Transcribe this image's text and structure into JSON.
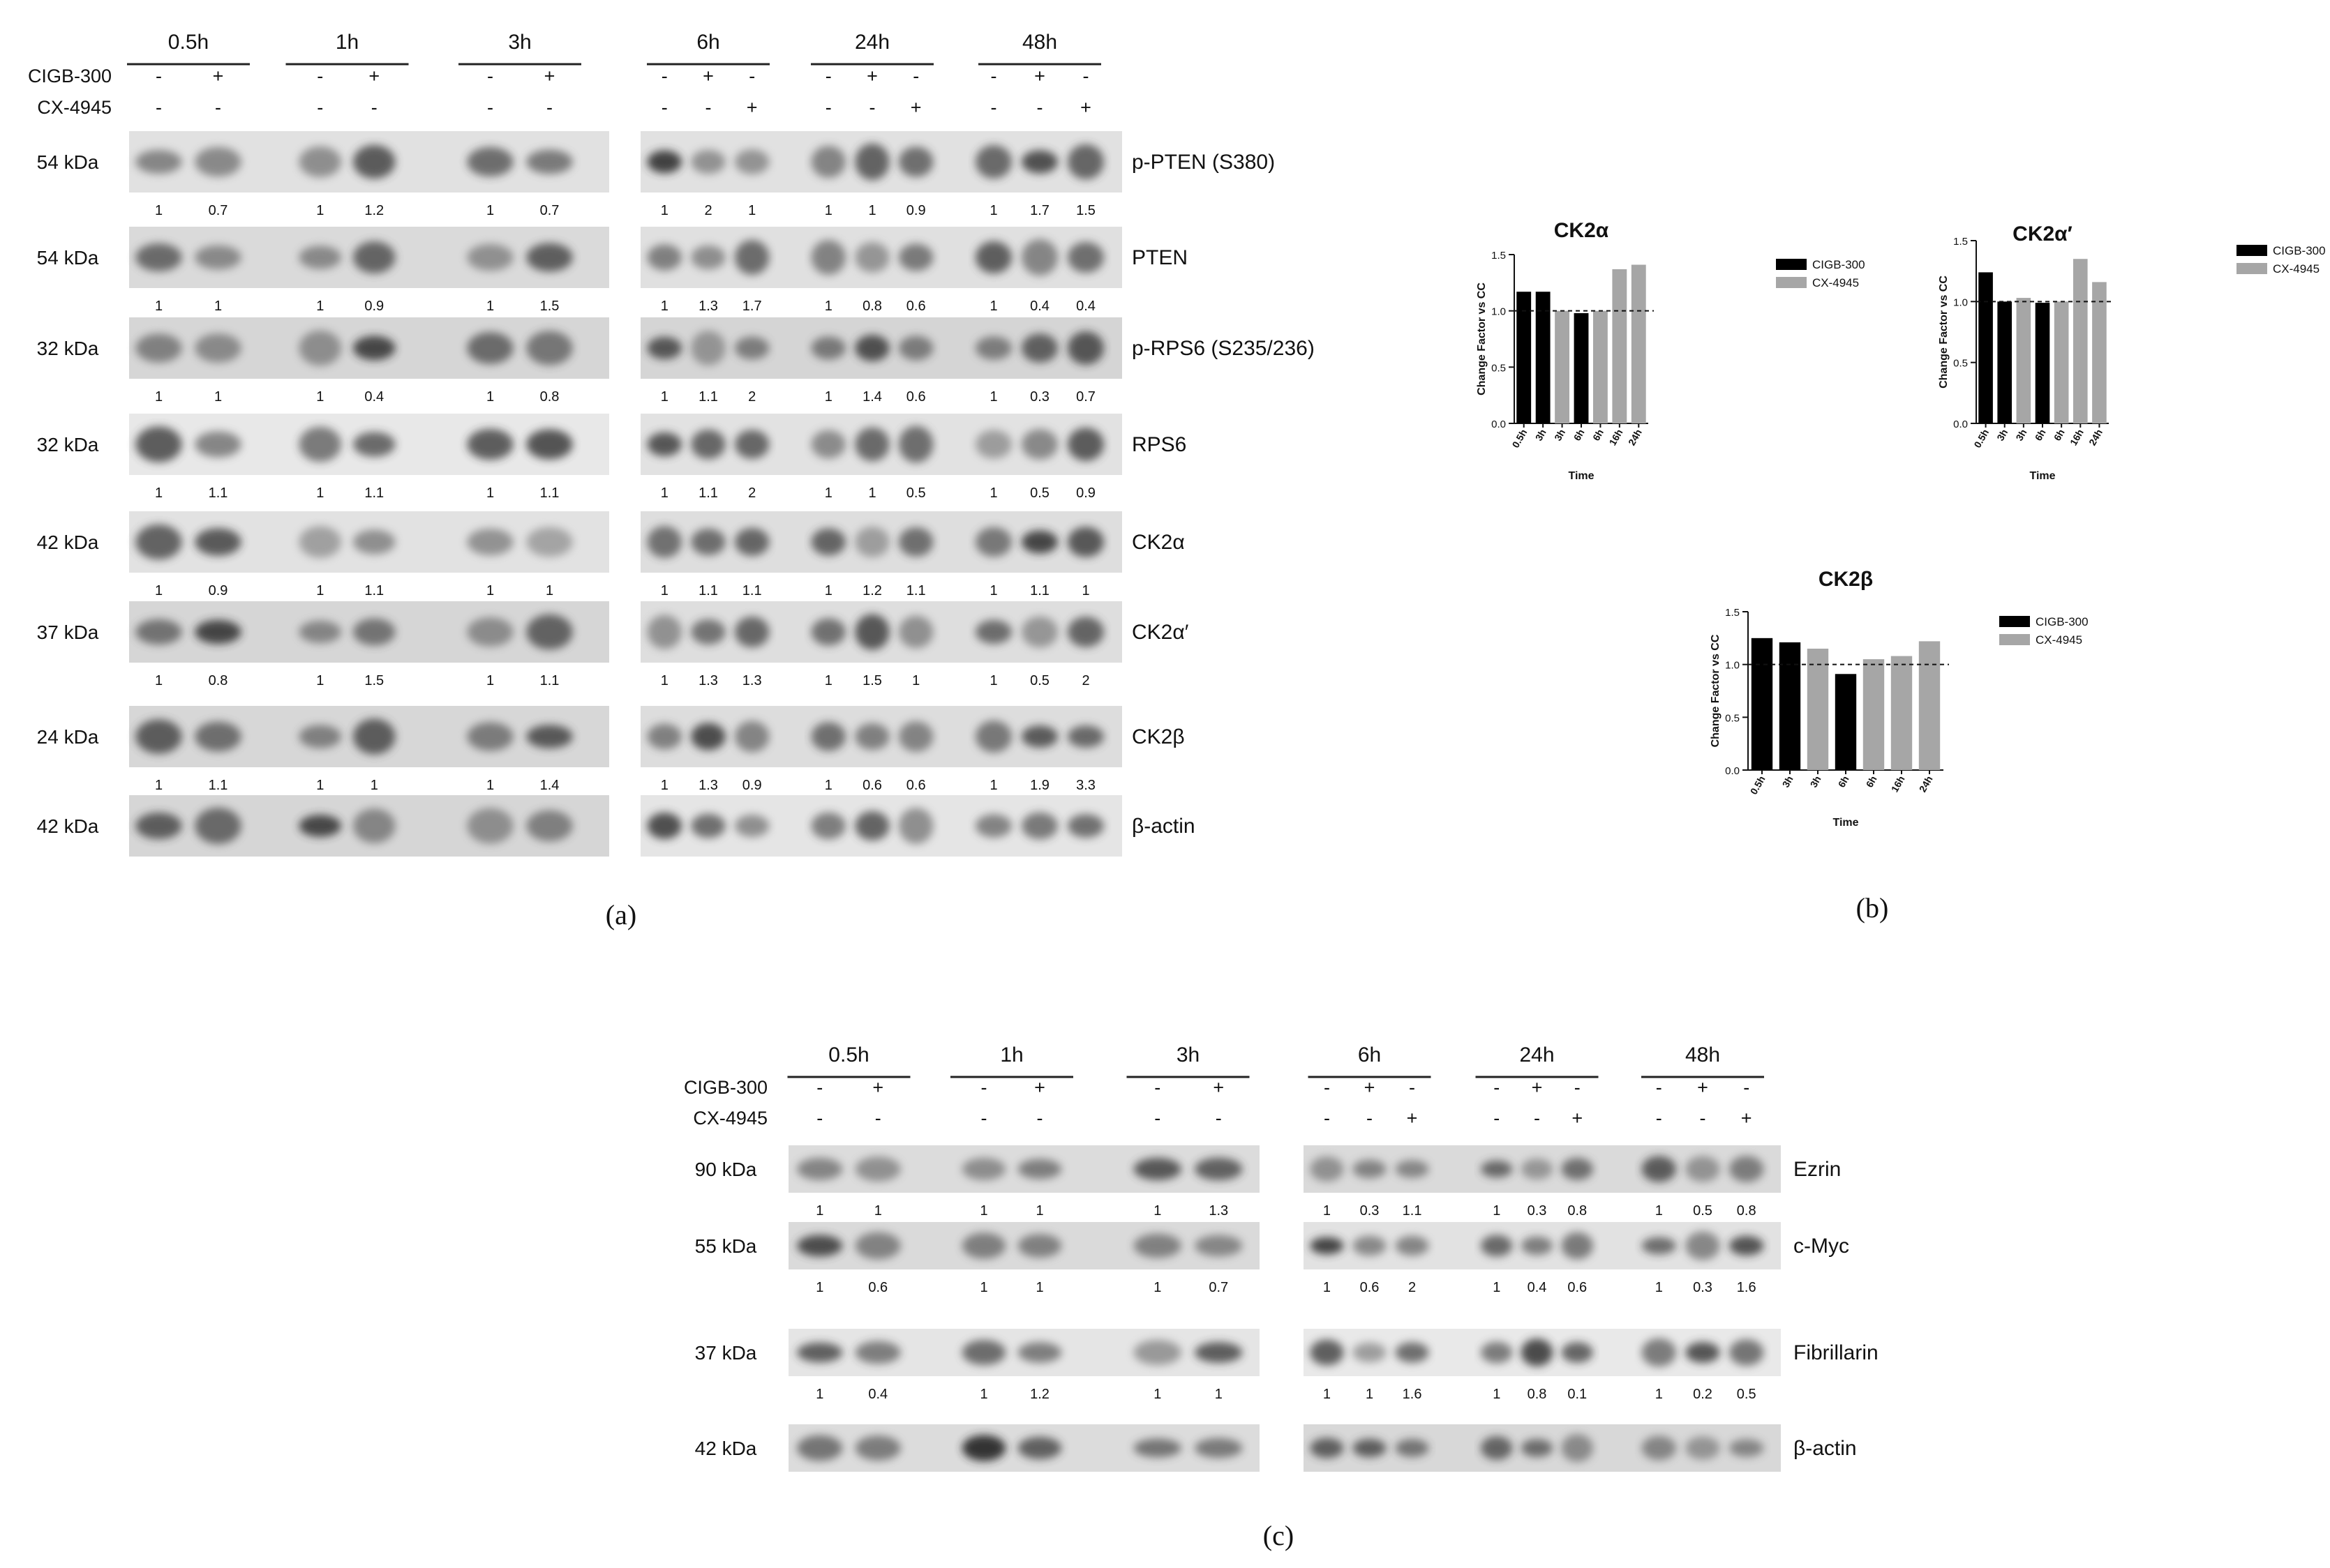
{
  "panel_labels": {
    "a": "(a)",
    "b": "(b)",
    "c": "(c)"
  },
  "treatments": {
    "cigb": "CIGB-300",
    "cx": "CX-4945",
    "minus": "-",
    "plus": "+"
  },
  "blot_a": {
    "timepoints_left": [
      "0.5h",
      "1h",
      "3h"
    ],
    "timepoints_right": [
      "6h",
      "24h",
      "48h"
    ],
    "rows": [
      {
        "kda": "54 kDa",
        "label": "p-PTEN (S380)",
        "q_left": [
          [
            "1",
            "0.7"
          ],
          [
            "1",
            "1.2"
          ],
          [
            "1",
            "0.7"
          ]
        ],
        "q_right": [
          [
            "1",
            "2",
            "1"
          ],
          [
            "1",
            "1",
            "0.9"
          ],
          [
            "1",
            "1.7",
            "1.5"
          ]
        ]
      },
      {
        "kda": "54 kDa",
        "label": "PTEN",
        "q_left": [
          [
            "1",
            "1"
          ],
          [
            "1",
            "0.9"
          ],
          [
            "1",
            "1.5"
          ]
        ],
        "q_right": [
          [
            "1",
            "1.3",
            "1.7"
          ],
          [
            "1",
            "0.8",
            "0.6"
          ],
          [
            "1",
            "0.4",
            "0.4"
          ]
        ]
      },
      {
        "kda": "32 kDa",
        "label": "p-RPS6 (S235/236)",
        "q_left": [
          [
            "1",
            "1"
          ],
          [
            "1",
            "0.4"
          ],
          [
            "1",
            "0.8"
          ]
        ],
        "q_right": [
          [
            "1",
            "1.1",
            "2"
          ],
          [
            "1",
            "1.4",
            "0.6"
          ],
          [
            "1",
            "0.3",
            "0.7"
          ]
        ]
      },
      {
        "kda": "32 kDa",
        "label": "RPS6",
        "q_left": [
          [
            "1",
            "1.1"
          ],
          [
            "1",
            "1.1"
          ],
          [
            "1",
            "1.1"
          ]
        ],
        "q_right": [
          [
            "1",
            "1.1",
            "2"
          ],
          [
            "1",
            "1",
            "0.5"
          ],
          [
            "1",
            "0.5",
            "0.9"
          ]
        ]
      },
      {
        "kda": "42 kDa",
        "label": "CK2α",
        "q_left": [
          [
            "1",
            "0.9"
          ],
          [
            "1",
            "1.1"
          ],
          [
            "1",
            "1"
          ]
        ],
        "q_right": [
          [
            "1",
            "1.1",
            "1.1"
          ],
          [
            "1",
            "1.2",
            "1.1"
          ],
          [
            "1",
            "1.1",
            "1"
          ]
        ]
      },
      {
        "kda": "37 kDa",
        "label": "CK2α′",
        "q_left": [
          [
            "1",
            "0.8"
          ],
          [
            "1",
            "1.5"
          ],
          [
            "1",
            "1.1"
          ]
        ],
        "q_right": [
          [
            "1",
            "1.3",
            "1.3"
          ],
          [
            "1",
            "1.5",
            "1"
          ],
          [
            "1",
            "0.5",
            "2"
          ]
        ]
      },
      {
        "kda": "24 kDa",
        "label": "CK2β",
        "q_left": [
          [
            "1",
            "1.1"
          ],
          [
            "1",
            "1"
          ],
          [
            "1",
            "1.4"
          ]
        ],
        "q_right": [
          [
            "1",
            "1.3",
            "0.9"
          ],
          [
            "1",
            "0.6",
            "0.6"
          ],
          [
            "1",
            "1.9",
            "3.3"
          ]
        ]
      },
      {
        "kda": "42 kDa",
        "label": "β-actin",
        "q_left": [],
        "q_right": []
      }
    ]
  },
  "blot_c": {
    "timepoints_left": [
      "0.5h",
      "1h",
      "3h"
    ],
    "timepoints_right": [
      "6h",
      "24h",
      "48h"
    ],
    "rows": [
      {
        "kda": "90 kDa",
        "label": "Ezrin",
        "q_left": [
          [
            "1",
            "1"
          ],
          [
            "1",
            "1"
          ],
          [
            "1",
            "1.3"
          ]
        ],
        "q_right": [
          [
            "1",
            "0.3",
            "1.1"
          ],
          [
            "1",
            "0.3",
            "0.8"
          ],
          [
            "1",
            "0.5",
            "0.8"
          ]
        ]
      },
      {
        "kda": "55 kDa",
        "label": "c-Myc",
        "q_left": [
          [
            "1",
            "0.6"
          ],
          [
            "1",
            "1"
          ],
          [
            "1",
            "0.7"
          ]
        ],
        "q_right": [
          [
            "1",
            "0.6",
            "2"
          ],
          [
            "1",
            "0.4",
            "0.6"
          ],
          [
            "1",
            "0.3",
            "1.6"
          ]
        ]
      },
      {
        "kda": "37 kDa",
        "label": "Fibrillarin",
        "q_left": [
          [
            "1",
            "0.4"
          ],
          [
            "1",
            "1.2"
          ],
          [
            "1",
            "1"
          ]
        ],
        "q_right": [
          [
            "1",
            "1",
            "1.6"
          ],
          [
            "1",
            "0.8",
            "0.1"
          ],
          [
            "1",
            "0.2",
            "0.5"
          ]
        ]
      },
      {
        "kda": "42 kDa",
        "label": "β-actin",
        "q_left": [],
        "q_right": []
      }
    ]
  },
  "chart_data": [
    {
      "type": "bar",
      "title": "CK2α",
      "xlabel": "Time",
      "ylabel": "Change Factor vs CC",
      "categories": [
        "0.5h",
        "3h",
        "3h",
        "6h",
        "6h",
        "16h",
        "24h"
      ],
      "values": [
        1.17,
        1.17,
        1.0,
        0.98,
        1.0,
        1.37,
        1.41
      ],
      "series_of_bar": [
        "CIGB-300",
        "CIGB-300",
        "CX-4945",
        "CIGB-300",
        "CX-4945",
        "CX-4945",
        "CX-4945"
      ],
      "legend": [
        "CIGB-300",
        "CX-4945"
      ],
      "colors": {
        "CIGB-300": "#000000",
        "CX-4945": "#a6a6a6"
      },
      "ylim": [
        0,
        1.5
      ],
      "yticks": [
        "0.0",
        "0.5",
        "1.0",
        "1.5"
      ],
      "reference_line": 1.0,
      "legend_position": "right"
    },
    {
      "type": "bar",
      "title": "CK2α′",
      "xlabel": "Time",
      "ylabel": "Change Factor vs CC",
      "categories": [
        "0.5h",
        "3h",
        "3h",
        "6h",
        "6h",
        "16h",
        "24h"
      ],
      "values": [
        1.24,
        1.0,
        1.03,
        0.99,
        1.0,
        1.35,
        1.16
      ],
      "series_of_bar": [
        "CIGB-300",
        "CIGB-300",
        "CX-4945",
        "CIGB-300",
        "CX-4945",
        "CX-4945",
        "CX-4945"
      ],
      "legend": [
        "CIGB-300",
        "CX-4945"
      ],
      "colors": {
        "CIGB-300": "#000000",
        "CX-4945": "#a6a6a6"
      },
      "ylim": [
        0,
        1.5
      ],
      "yticks": [
        "0.0",
        "0.5",
        "1.0",
        "1.5"
      ],
      "reference_line": 1.0,
      "legend_position": "right"
    },
    {
      "type": "bar",
      "title": "CK2β",
      "xlabel": "Time",
      "ylabel": "Change Factor vs CC",
      "categories": [
        "0.5h",
        "3h",
        "3h",
        "6h",
        "6h",
        "16h",
        "24h"
      ],
      "values": [
        1.25,
        1.21,
        1.15,
        0.91,
        1.05,
        1.08,
        1.22
      ],
      "series_of_bar": [
        "CIGB-300",
        "CIGB-300",
        "CX-4945",
        "CIGB-300",
        "CX-4945",
        "CX-4945",
        "CX-4945"
      ],
      "legend": [
        "CIGB-300",
        "CX-4945"
      ],
      "colors": {
        "CIGB-300": "#000000",
        "CX-4945": "#a6a6a6"
      },
      "ylim": [
        0,
        1.5
      ],
      "yticks": [
        "0.0",
        "0.5",
        "1.0",
        "1.5"
      ],
      "reference_line": 1.0,
      "legend_position": "right"
    }
  ]
}
